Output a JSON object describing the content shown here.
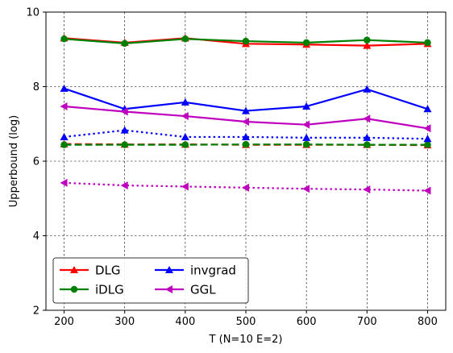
{
  "chart_data": {
    "type": "line",
    "xlabel": "T (N=10 E=2)",
    "ylabel": "Upperbound (log)",
    "x": [
      200,
      300,
      400,
      500,
      600,
      700,
      800
    ],
    "xticks": [
      "200",
      "300",
      "400",
      "500",
      "600",
      "700",
      "800"
    ],
    "xlim": [
      170,
      830
    ],
    "ylim": [
      2,
      10
    ],
    "yticks": [
      "2",
      "4",
      "6",
      "8",
      "10"
    ],
    "grid": true,
    "legend_position": "lower-left",
    "series": [
      {
        "name": "DLG",
        "color": "#ff0000",
        "marker": "triangle-up",
        "style": "solid",
        "values": [
          9.3,
          9.18,
          9.3,
          9.15,
          9.13,
          9.1,
          9.15
        ]
      },
      {
        "name": "iDLG",
        "color": "#008000",
        "marker": "circle",
        "style": "solid",
        "values": [
          9.28,
          9.16,
          9.28,
          9.22,
          9.18,
          9.25,
          9.18
        ]
      },
      {
        "name": "invgrad",
        "color": "#0000ff",
        "marker": "triangle-up",
        "style": "solid",
        "values": [
          7.95,
          7.4,
          7.58,
          7.35,
          7.47,
          7.93,
          7.4
        ]
      },
      {
        "name": "GGL",
        "color": "#bf00bf",
        "marker": "triangle-left",
        "style": "solid",
        "values": [
          7.47,
          7.33,
          7.21,
          7.06,
          6.98,
          7.14,
          6.88
        ]
      },
      {
        "name": "",
        "color": "#ff0000",
        "marker": "triangle-up",
        "style": "dashed",
        "values": [
          6.46,
          6.45,
          6.45,
          6.44,
          6.44,
          6.44,
          6.43
        ]
      },
      {
        "name": "",
        "color": "#008000",
        "marker": "circle",
        "style": "dashed",
        "values": [
          6.44,
          6.44,
          6.44,
          6.45,
          6.45,
          6.44,
          6.44
        ]
      },
      {
        "name": "",
        "color": "#0000ff",
        "marker": "triangle-up",
        "style": "dotted",
        "values": [
          6.65,
          6.83,
          6.65,
          6.65,
          6.63,
          6.63,
          6.6
        ]
      },
      {
        "name": "",
        "color": "#bf00bf",
        "marker": "triangle-left",
        "style": "dotted",
        "values": [
          5.42,
          5.35,
          5.32,
          5.29,
          5.26,
          5.24,
          5.21
        ]
      }
    ]
  }
}
